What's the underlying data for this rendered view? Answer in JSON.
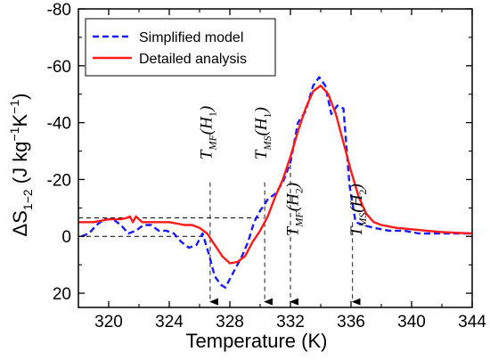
{
  "chart_data": {
    "type": "line",
    "xlabel": "Temperature (K)",
    "ylabel": {
      "main": "ΔS",
      "sub": "1−2",
      "unit_prefix": "(J kg",
      "sup1": "−1",
      "unit_mid": "K",
      "sup2": "−1",
      "unit_suffix": ")"
    },
    "xlim": [
      318,
      344
    ],
    "ylim": [
      25,
      -80
    ],
    "y_inverted": true,
    "xticks": [
      {
        "value": 320,
        "label": "320"
      },
      {
        "value": 324,
        "label": "324"
      },
      {
        "value": 328,
        "label": "328"
      },
      {
        "value": 332,
        "label": "332"
      },
      {
        "value": 336,
        "label": "336"
      },
      {
        "value": 340,
        "label": "340"
      },
      {
        "value": 344,
        "label": "344"
      }
    ],
    "yticks": [
      {
        "value": -80,
        "label": "-80"
      },
      {
        "value": -60,
        "label": "-60"
      },
      {
        "value": -40,
        "label": "-40"
      },
      {
        "value": -20,
        "label": "-20"
      },
      {
        "value": 0,
        "label": "0"
      },
      {
        "value": 20,
        "label": "20"
      }
    ],
    "legend_position": "top-left",
    "grid": false,
    "series": [
      {
        "name": "Simplified model",
        "color": "#1a1aff",
        "style": "dashed",
        "points": [
          [
            318.2,
            0
          ],
          [
            318.7,
            -1
          ],
          [
            319.2,
            -4
          ],
          [
            319.7,
            -6
          ],
          [
            320.3,
            -6
          ],
          [
            320.8,
            -4
          ],
          [
            321.3,
            -1
          ],
          [
            321.8,
            -2
          ],
          [
            322.3,
            -4
          ],
          [
            322.8,
            -4
          ],
          [
            323.3,
            -2
          ],
          [
            323.8,
            -2
          ],
          [
            324.3,
            -1
          ],
          [
            324.8,
            2
          ],
          [
            325.3,
            4
          ],
          [
            325.8,
            3
          ],
          [
            326.2,
            -1
          ],
          [
            326.6,
            6
          ],
          [
            327.0,
            14
          ],
          [
            327.4,
            17
          ],
          [
            327.7,
            18
          ],
          [
            328.0,
            15
          ],
          [
            328.4,
            11
          ],
          [
            328.8,
            7
          ],
          [
            329.2,
            2
          ],
          [
            329.6,
            -5
          ],
          [
            330.0,
            -9
          ],
          [
            330.5,
            -13
          ],
          [
            331.0,
            -15
          ],
          [
            331.5,
            -19
          ],
          [
            332.0,
            -26
          ],
          [
            332.5,
            -40
          ],
          [
            333.0,
            -44
          ],
          [
            333.5,
            -53
          ],
          [
            333.9,
            -56
          ],
          [
            334.3,
            -53
          ],
          [
            334.7,
            -43
          ],
          [
            335.1,
            -46
          ],
          [
            335.5,
            -45
          ],
          [
            335.9,
            -18
          ],
          [
            336.3,
            -5
          ],
          [
            336.8,
            -4
          ],
          [
            337.5,
            -3
          ],
          [
            338.5,
            -2
          ],
          [
            339.5,
            -2
          ],
          [
            340.5,
            -1
          ],
          [
            342.0,
            -1
          ],
          [
            344.0,
            -1
          ]
        ]
      },
      {
        "name": "Detailed analysis",
        "color": "#ff1a1a",
        "style": "solid",
        "points": [
          [
            318.0,
            -5
          ],
          [
            319.0,
            -5
          ],
          [
            320.0,
            -6
          ],
          [
            320.8,
            -6
          ],
          [
            321.2,
            -6.5
          ],
          [
            321.4,
            -7
          ],
          [
            321.6,
            -5
          ],
          [
            321.8,
            -7
          ],
          [
            322.2,
            -5
          ],
          [
            323.0,
            -5
          ],
          [
            324.0,
            -5
          ],
          [
            325.0,
            -4
          ],
          [
            325.5,
            -4
          ],
          [
            326.0,
            -3
          ],
          [
            326.5,
            -1
          ],
          [
            327.0,
            3
          ],
          [
            327.5,
            7
          ],
          [
            328.0,
            9.5
          ],
          [
            328.5,
            9
          ],
          [
            329.0,
            7
          ],
          [
            329.5,
            2
          ],
          [
            330.0,
            -2
          ],
          [
            330.5,
            -7
          ],
          [
            331.0,
            -14
          ],
          [
            331.5,
            -20
          ],
          [
            332.0,
            -28
          ],
          [
            332.5,
            -37
          ],
          [
            333.0,
            -45
          ],
          [
            333.5,
            -51
          ],
          [
            334.0,
            -53
          ],
          [
            334.5,
            -50
          ],
          [
            335.0,
            -43
          ],
          [
            335.5,
            -33
          ],
          [
            336.0,
            -23
          ],
          [
            336.5,
            -14
          ],
          [
            337.0,
            -8
          ],
          [
            337.5,
            -5
          ],
          [
            338.0,
            -4
          ],
          [
            339.0,
            -3
          ],
          [
            340.0,
            -2.5
          ],
          [
            341.0,
            -2
          ],
          [
            342.0,
            -1.5
          ],
          [
            344.0,
            -1
          ]
        ]
      }
    ],
    "guide_lines": [
      {
        "type": "h",
        "y": -6.5,
        "x_from": 318,
        "x_to": 330.2
      },
      {
        "type": "h",
        "y": 0,
        "x_from": 318,
        "x_to": 326.3
      },
      {
        "type": "v",
        "x": 326.7,
        "y_from": -19,
        "y_to": 23,
        "arrow": true
      },
      {
        "type": "v",
        "x": 330.3,
        "y_from": -19,
        "y_to": 23,
        "arrow": true
      },
      {
        "type": "v",
        "x": 332.0,
        "y_from": -28,
        "y_to": 23,
        "arrow": true
      },
      {
        "type": "v",
        "x": 336.1,
        "y_from": -5,
        "y_to": 23,
        "arrow": true
      }
    ],
    "annotations": [
      {
        "name": "t-mf-h1",
        "T": "T",
        "sub": "MF",
        "arg": "H",
        "argsub": "1",
        "x": 326.8,
        "y": -27
      },
      {
        "name": "t-ms-h1",
        "T": "T",
        "sub": "MS",
        "arg": "H",
        "argsub": "1",
        "x": 330.4,
        "y": -27
      },
      {
        "name": "t-mf-h2",
        "T": "T",
        "sub": "MF",
        "arg": "H",
        "argsub": "2",
        "x": 332.5,
        "y": 0
      },
      {
        "name": "t-ms-h2",
        "T": "T",
        "sub": "MS",
        "arg": "H",
        "argsub": "2",
        "x": 336.7,
        "y": 0
      }
    ]
  }
}
